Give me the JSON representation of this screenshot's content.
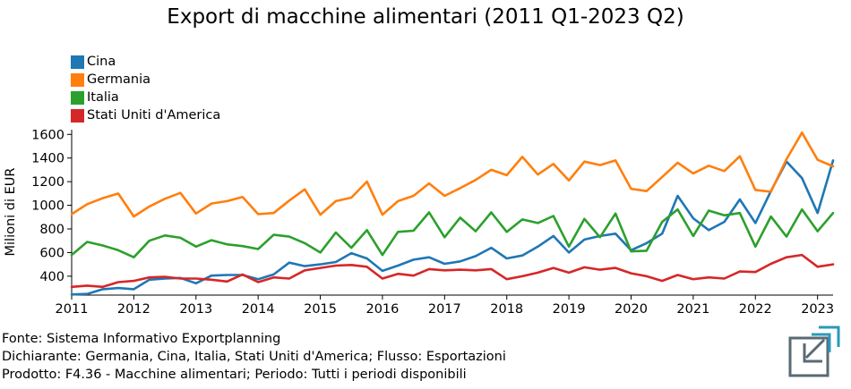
{
  "chart_data": {
    "type": "line",
    "title": "Export di macchine alimentari (2011 Q1-2023 Q2)",
    "ylabel": "Milioni di EUR",
    "xlabel": "",
    "ylim": [
      240,
      1640
    ],
    "xlim": [
      2011.0,
      2023.25
    ],
    "grid": false,
    "legend_position": "top-left",
    "x_ticks": [
      "2011",
      "2012",
      "2013",
      "2014",
      "2015",
      "2016",
      "2017",
      "2018",
      "2019",
      "2020",
      "2021",
      "2022",
      "2023"
    ],
    "y_ticks": [
      "400",
      "600",
      "800",
      "1000",
      "1200",
      "1400",
      "1600"
    ],
    "x": [
      "2011 Q1",
      "2011 Q2",
      "2011 Q3",
      "2011 Q4",
      "2012 Q1",
      "2012 Q2",
      "2012 Q3",
      "2012 Q4",
      "2013 Q1",
      "2013 Q2",
      "2013 Q3",
      "2013 Q4",
      "2014 Q1",
      "2014 Q2",
      "2014 Q3",
      "2014 Q4",
      "2015 Q1",
      "2015 Q2",
      "2015 Q3",
      "2015 Q4",
      "2016 Q1",
      "2016 Q2",
      "2016 Q3",
      "2016 Q4",
      "2017 Q1",
      "2017 Q2",
      "2017 Q3",
      "2017 Q4",
      "2018 Q1",
      "2018 Q2",
      "2018 Q3",
      "2018 Q4",
      "2019 Q1",
      "2019 Q2",
      "2019 Q3",
      "2019 Q4",
      "2020 Q1",
      "2020 Q2",
      "2020 Q3",
      "2020 Q4",
      "2021 Q1",
      "2021 Q2",
      "2021 Q3",
      "2021 Q4",
      "2022 Q1",
      "2022 Q2",
      "2022 Q3",
      "2022 Q4",
      "2023 Q1",
      "2023 Q2"
    ],
    "series": [
      {
        "name": "Cina",
        "color": "#1f77b4",
        "values": [
          245,
          250,
          290,
          300,
          290,
          370,
          380,
          385,
          340,
          405,
          410,
          410,
          375,
          415,
          515,
          485,
          500,
          520,
          595,
          550,
          445,
          490,
          540,
          560,
          505,
          525,
          570,
          640,
          550,
          575,
          650,
          740,
          600,
          710,
          740,
          760,
          620,
          680,
          760,
          1080,
          890,
          790,
          860,
          1050,
          850,
          1120,
          1370,
          1230,
          935,
          1380
        ]
      },
      {
        "name": "Germania",
        "color": "#ff7f0e",
        "values": [
          925,
          1010,
          1060,
          1100,
          905,
          990,
          1055,
          1105,
          930,
          1015,
          1035,
          1070,
          925,
          935,
          1040,
          1135,
          920,
          1035,
          1065,
          1200,
          920,
          1035,
          1080,
          1185,
          1080,
          1145,
          1215,
          1300,
          1255,
          1410,
          1260,
          1350,
          1210,
          1370,
          1340,
          1380,
          1140,
          1120,
          1240,
          1360,
          1270,
          1335,
          1290,
          1415,
          1130,
          1115,
          1390,
          1615,
          1385,
          1330
        ]
      },
      {
        "name": "Italia",
        "color": "#2ca02c",
        "values": [
          580,
          690,
          660,
          620,
          560,
          700,
          745,
          725,
          650,
          705,
          670,
          655,
          630,
          750,
          735,
          680,
          600,
          770,
          640,
          790,
          580,
          775,
          785,
          940,
          730,
          895,
          780,
          940,
          775,
          880,
          850,
          910,
          650,
          885,
          730,
          930,
          610,
          615,
          860,
          965,
          740,
          955,
          915,
          935,
          650,
          905,
          735,
          965,
          780,
          935
        ]
      },
      {
        "name": "Stati Uniti d'America",
        "color": "#d62728",
        "values": [
          310,
          320,
          310,
          350,
          360,
          390,
          395,
          380,
          380,
          370,
          355,
          415,
          350,
          390,
          380,
          450,
          470,
          490,
          495,
          480,
          380,
          420,
          405,
          460,
          450,
          455,
          450,
          460,
          375,
          400,
          430,
          470,
          430,
          475,
          455,
          470,
          425,
          400,
          360,
          410,
          375,
          390,
          380,
          440,
          435,
          505,
          560,
          580,
          480,
          500
        ]
      }
    ]
  },
  "footer": {
    "line1": "Fonte: Sistema Informativo Exportplanning",
    "line2": "Dichiarante: Germania, Cina, Italia, Stati Uniti d'America; Flusso: Esportazioni",
    "line3": "Prodotto: F4.36 - Macchine alimentari; Periodo: Tutti i periodi disponibili"
  },
  "logo": {
    "icon": "exportplanning-logo-icon",
    "colors": [
      "#2a9ab8",
      "#5a6a73"
    ]
  }
}
